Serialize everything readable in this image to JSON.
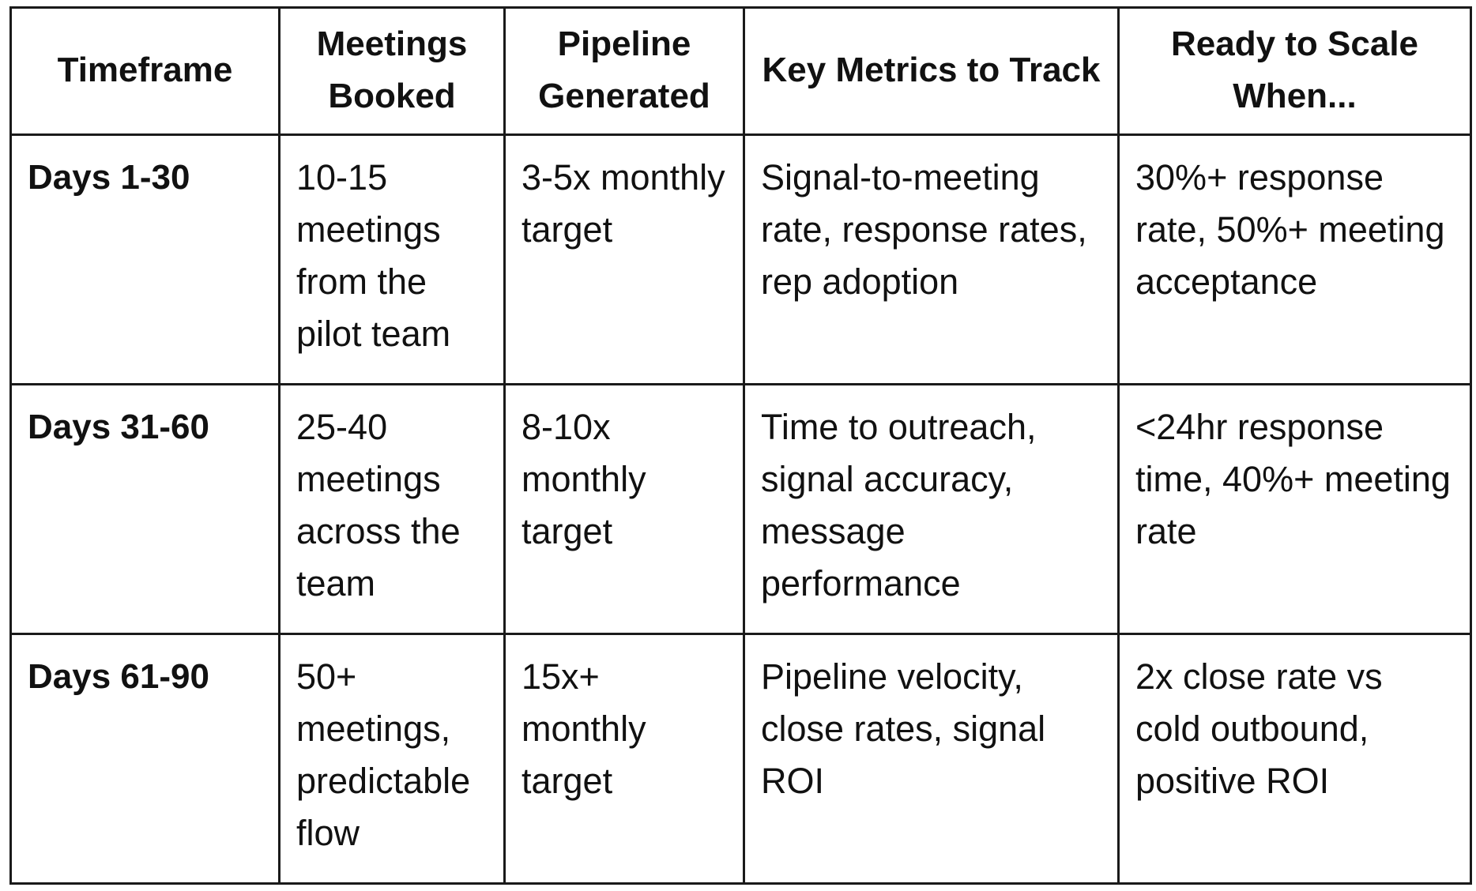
{
  "table": {
    "headers": [
      "Timeframe",
      "Meetings Booked",
      "Pipeline Generated",
      "Key Metrics to Track",
      "Ready to Scale When..."
    ],
    "rows": [
      {
        "timeframe": "Days 1-30",
        "meetings": "10-15 meetings from the pilot team",
        "pipeline": "3-5x monthly target",
        "metrics": "Signal-to-meeting rate, response rates, rep adoption",
        "ready": "30%+ response rate, 50%+ meeting acceptance"
      },
      {
        "timeframe": "Days 31-60",
        "meetings": "25-40 meetings across the team",
        "pipeline": "8-10x monthly target",
        "metrics": "Time to outreach, signal accuracy, message performance",
        "ready": "<24hr response time, 40%+ meeting rate"
      },
      {
        "timeframe": "Days 61-90",
        "meetings": "50+ meetings, predictable flow",
        "pipeline": "15x+ monthly target",
        "metrics": "Pipeline velocity, close rates, signal ROI",
        "ready": "2x close rate vs cold outbound, positive ROI"
      }
    ]
  }
}
